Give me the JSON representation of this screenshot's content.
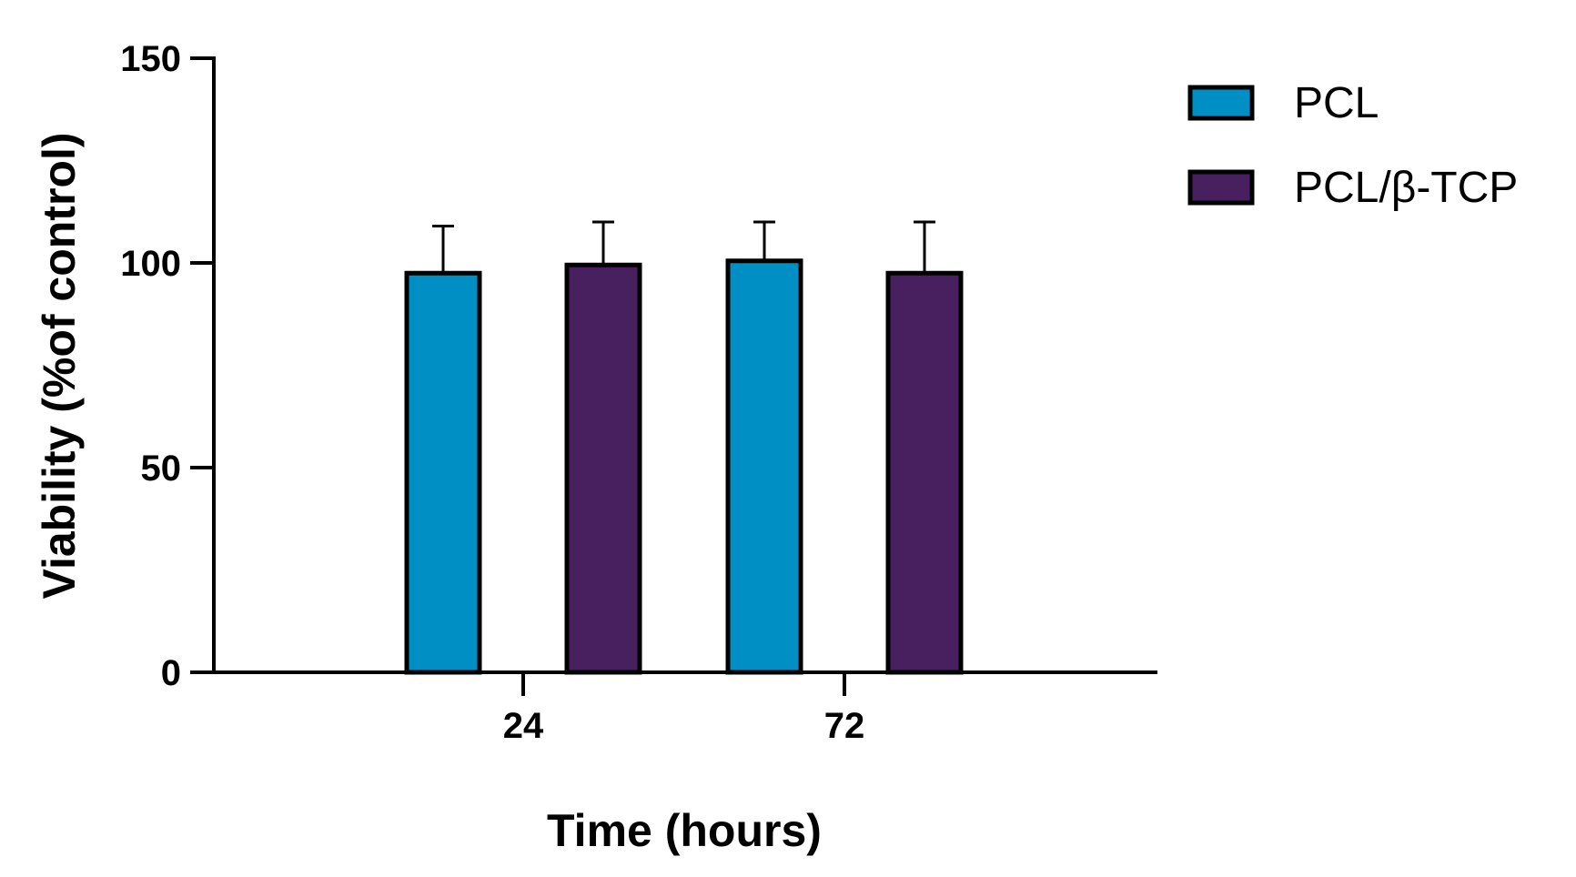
{
  "chart_data": {
    "type": "bar",
    "categories": [
      "24",
      "72"
    ],
    "series": [
      {
        "name": "PCL",
        "values": [
          97.5,
          100.5
        ],
        "errors": [
          11.5,
          9.5
        ],
        "color": "#008FC5"
      },
      {
        "name": "PCL/β-TCP",
        "values": [
          99.5,
          97.5
        ],
        "errors": [
          10.5,
          12.5
        ],
        "color": "#48205F"
      }
    ],
    "xlabel": "Time (hours)",
    "ylabel": "Viability (%of control)",
    "ylim": [
      0,
      150
    ],
    "yticks": [
      0,
      50,
      100,
      150
    ],
    "grid": false,
    "legend_position": "top-right"
  }
}
